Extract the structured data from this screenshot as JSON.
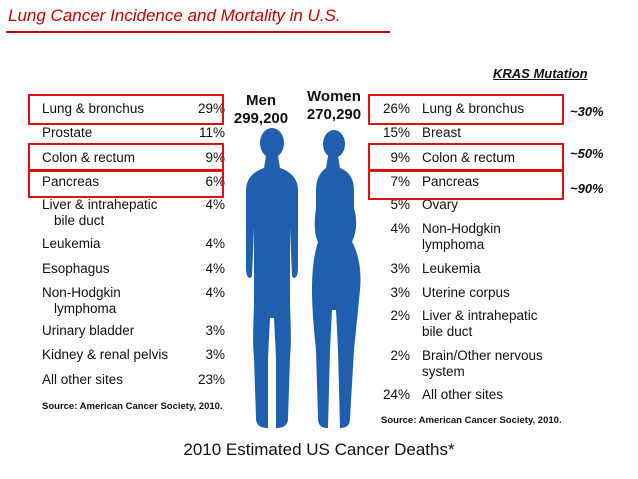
{
  "slide_title": "Lung Cancer Incidence and Mortality in U.S.",
  "kras_heading": "KRAS Mutation",
  "men": {
    "header": "Men",
    "count": "299,200",
    "rows": [
      {
        "label": "Lung & bronchus",
        "value": "29%"
      },
      {
        "label": "Prostate",
        "value": "11%"
      },
      {
        "label": "Colon & rectum",
        "value": "9%"
      },
      {
        "label": "Pancreas",
        "value": "6%"
      },
      {
        "label": "Liver & intrahepatic",
        "label2": "bile duct",
        "value": "4%"
      },
      {
        "label": "Leukemia",
        "value": "4%"
      },
      {
        "label": "Esophagus",
        "value": "4%"
      },
      {
        "label": "Non-Hodgkin",
        "label2": "lymphoma",
        "value": "4%"
      },
      {
        "label": "Urinary bladder",
        "value": "3%"
      },
      {
        "label": "Kidney & renal pelvis",
        "value": "3%"
      },
      {
        "label": "All other sites",
        "value": "23%"
      }
    ],
    "source": "Source: American Cancer Society, 2010."
  },
  "women": {
    "header": "Women",
    "count": "270,290",
    "rows": [
      {
        "label": "Lung & bronchus",
        "value": "26%"
      },
      {
        "label": "Breast",
        "value": "15%"
      },
      {
        "label": "Colon & rectum",
        "value": "9%"
      },
      {
        "label": "Pancreas",
        "value": "7%"
      },
      {
        "label": "Ovary",
        "value": "5%"
      },
      {
        "label": "Non-Hodgkin",
        "label2": "lymphoma",
        "value": "4%"
      },
      {
        "label": "Leukemia",
        "value": "3%"
      },
      {
        "label": "Uterine corpus",
        "value": "3%"
      },
      {
        "label": "Liver & intrahepatic",
        "label2": "bile duct",
        "value": "2%"
      },
      {
        "label": "Brain/Other nervous",
        "label2": "system",
        "value": "2%"
      },
      {
        "label": "All other sites",
        "value": "24%"
      }
    ],
    "source": "Source: American Cancer Society, 2010."
  },
  "kras_values": [
    "~30%",
    "~50%",
    "~90%"
  ],
  "bottom_caption": "2010 Estimated US Cancer Deaths*",
  "colors": {
    "accent_red": "#e01010",
    "figure_blue": "#1f5fae",
    "title_red": "#c00000"
  }
}
